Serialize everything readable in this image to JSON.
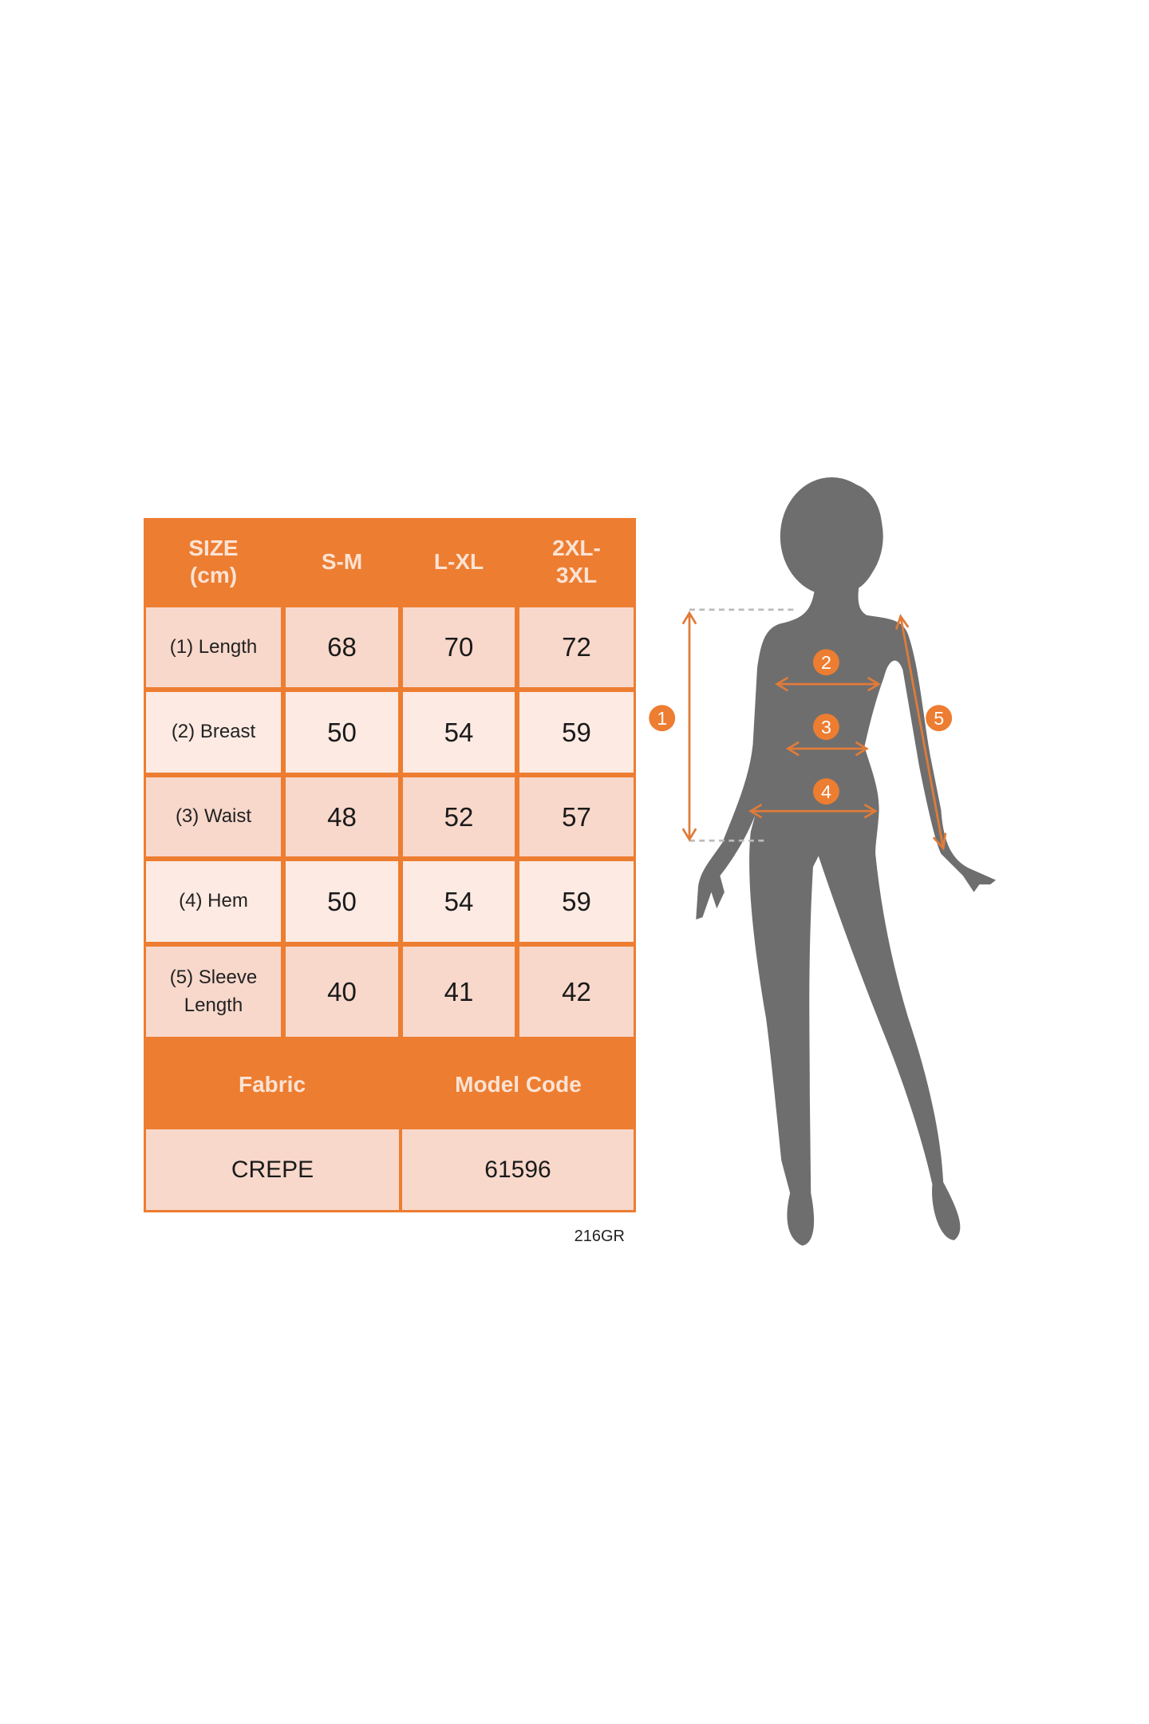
{
  "colors": {
    "accent": "#ED7D31",
    "row_dark": "#F8D8CB",
    "row_light": "#FCEAE3",
    "silhouette": "#6E6E6E"
  },
  "table": {
    "header": [
      "SIZE (cm)",
      "S-M",
      "L-XL",
      "2XL-3XL"
    ],
    "header_lines": [
      [
        "SIZE",
        "(cm)"
      ],
      [
        "S-M"
      ],
      [
        "L-XL"
      ],
      [
        "2XL-",
        "3XL"
      ]
    ],
    "rows": [
      {
        "label": "(1) Length",
        "values": [
          "68",
          "70",
          "72"
        ]
      },
      {
        "label": "(2) Breast",
        "values": [
          "50",
          "54",
          "59"
        ]
      },
      {
        "label": "(3) Waist",
        "values": [
          "48",
          "52",
          "57"
        ]
      },
      {
        "label": "(4) Hem",
        "values": [
          "50",
          "54",
          "59"
        ]
      },
      {
        "label": "(5) Sleeve Length",
        "label_lines": [
          "(5) Sleeve",
          "Length"
        ],
        "values": [
          "40",
          "41",
          "42"
        ]
      }
    ],
    "footer_headers": [
      "Fabric",
      "Model Code"
    ],
    "footer_values": [
      "CREPE",
      "61596"
    ]
  },
  "code_label": "216GR",
  "figure": {
    "markers": [
      "1",
      "2",
      "3",
      "4",
      "5"
    ]
  }
}
